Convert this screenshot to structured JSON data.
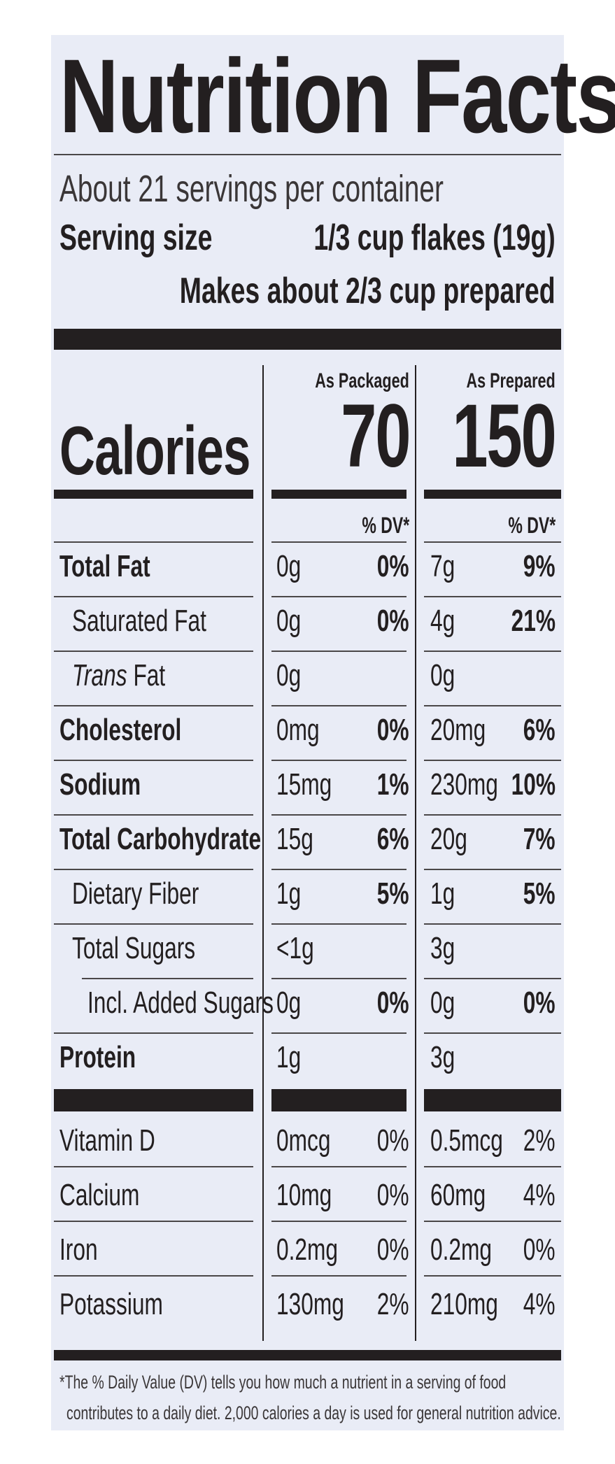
{
  "title": "Nutrition Facts",
  "servings": "About 21 servings per container",
  "serving_size_label": "Serving size",
  "serving_size_value": "1/3 cup flakes (19g)",
  "prepared_note": "Makes about 2/3 cup prepared",
  "columns": {
    "packaged": {
      "header": "As Packaged",
      "calories": "70",
      "dv_header": "% DV*"
    },
    "prepared": {
      "header": "As Prepared",
      "calories": "150",
      "dv_header": "% DV*"
    }
  },
  "calories_label": "Calories",
  "nutrients": [
    {
      "name": "Total Fat",
      "bold": true,
      "indent": 0,
      "pk_amt": "0g",
      "pk_dv": "0%",
      "pr_amt": "7g",
      "pr_dv": "9%"
    },
    {
      "name": "Saturated Fat",
      "bold": false,
      "indent": 1,
      "pk_amt": "0g",
      "pk_dv": "0%",
      "pr_amt": "4g",
      "pr_dv": "21%"
    },
    {
      "name_italic": "Trans",
      "name": " Fat",
      "bold": false,
      "indent": 1,
      "pk_amt": "0g",
      "pk_dv": "",
      "pr_amt": "0g",
      "pr_dv": ""
    },
    {
      "name": "Cholesterol",
      "bold": true,
      "indent": 0,
      "pk_amt": "0mg",
      "pk_dv": "0%",
      "pr_amt": "20mg",
      "pr_dv": "6%"
    },
    {
      "name": "Sodium",
      "bold": true,
      "indent": 0,
      "pk_amt": "15mg",
      "pk_dv": "1%",
      "pr_amt": "230mg",
      "pr_dv": "10%"
    },
    {
      "name": "Total Carbohydrate",
      "bold": true,
      "indent": 0,
      "pk_amt": "15g",
      "pk_dv": "6%",
      "pr_amt": "20g",
      "pr_dv": "7%"
    },
    {
      "name": "Dietary Fiber",
      "bold": false,
      "indent": 1,
      "pk_amt": "1g",
      "pk_dv": "5%",
      "pr_amt": "1g",
      "pr_dv": "5%"
    },
    {
      "name": "Total Sugars",
      "bold": false,
      "indent": 1,
      "pk_amt": "<1g",
      "pk_dv": "",
      "pr_amt": "3g",
      "pr_dv": ""
    },
    {
      "name": "Incl. Added Sugars",
      "bold": false,
      "indent": 2,
      "pk_amt": "0g",
      "pk_dv": "0%",
      "pr_amt": "0g",
      "pr_dv": "0%"
    },
    {
      "name": "Protein",
      "bold": true,
      "indent": 0,
      "pk_amt": "1g",
      "pk_dv": "",
      "pr_amt": "3g",
      "pr_dv": ""
    }
  ],
  "vitamins": [
    {
      "name": "Vitamin D",
      "pk_amt": "0mcg",
      "pk_dv": "0%",
      "pr_amt": "0.5mcg",
      "pr_dv": "2%"
    },
    {
      "name": "Calcium",
      "pk_amt": "10mg",
      "pk_dv": "0%",
      "pr_amt": "60mg",
      "pr_dv": "4%"
    },
    {
      "name": "Iron",
      "pk_amt": "0.2mg",
      "pk_dv": "0%",
      "pr_amt": "0.2mg",
      "pr_dv": "0%"
    },
    {
      "name": "Potassium",
      "pk_amt": "130mg",
      "pk_dv": "2%",
      "pr_amt": "210mg",
      "pr_dv": "4%"
    }
  ],
  "footnote_line1": "*The % Daily Value (DV) tells you how much a nutrient in a serving of food",
  "footnote_line2": "contributes to a daily diet. 2,000 calories a day is used for general nutrition advice."
}
